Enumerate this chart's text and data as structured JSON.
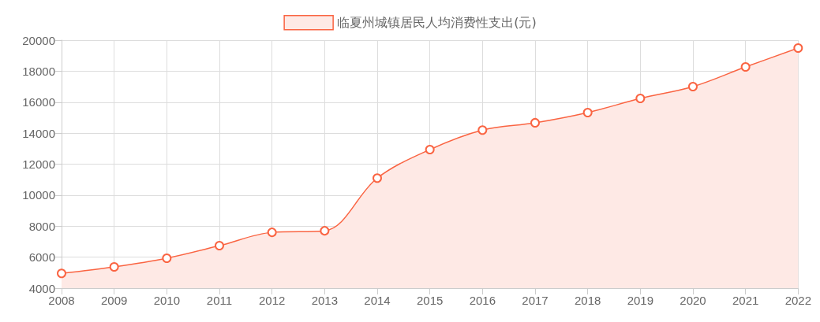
{
  "chart_data": {
    "type": "area",
    "categories": [
      "2008",
      "2009",
      "2010",
      "2011",
      "2012",
      "2013",
      "2014",
      "2015",
      "2016",
      "2017",
      "2018",
      "2019",
      "2020",
      "2021",
      "2022"
    ],
    "series": [
      {
        "name": "临夏州城镇居民人均消费性支出(元)",
        "color": "#fa6442",
        "values": [
          4950,
          5370,
          5930,
          6740,
          7600,
          7700,
          11100,
          12940,
          14200,
          14670,
          15330,
          16240,
          17000,
          18270,
          19490
        ]
      }
    ],
    "ylim": [
      4000,
      20000
    ],
    "yticks": [
      4000,
      6000,
      8000,
      10000,
      12000,
      14000,
      16000,
      18000,
      20000
    ],
    "grid": true,
    "legend": "top",
    "marker": "circle"
  }
}
